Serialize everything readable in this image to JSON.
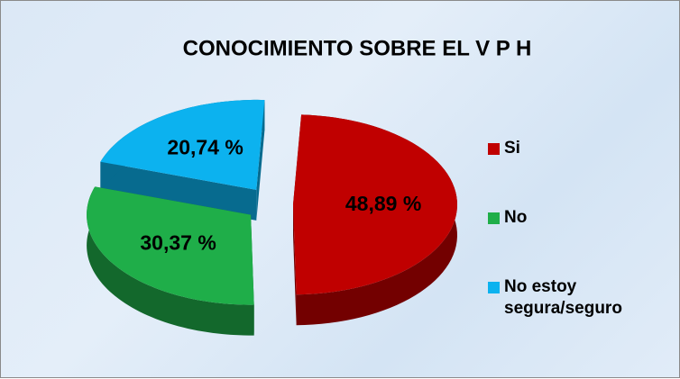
{
  "chart_data": {
    "type": "pie",
    "title": "CONOCIMIENTO SOBRE  EL V P H",
    "categories": [
      "Si",
      "No",
      "No estoy segura/seguro"
    ],
    "values": [
      48.89,
      30.37,
      20.74
    ],
    "value_labels": [
      "48,89 %",
      "30,37 %",
      "20,74 %"
    ],
    "colors": [
      "#c00000",
      "#1fae49",
      "#0cb2ef"
    ]
  }
}
